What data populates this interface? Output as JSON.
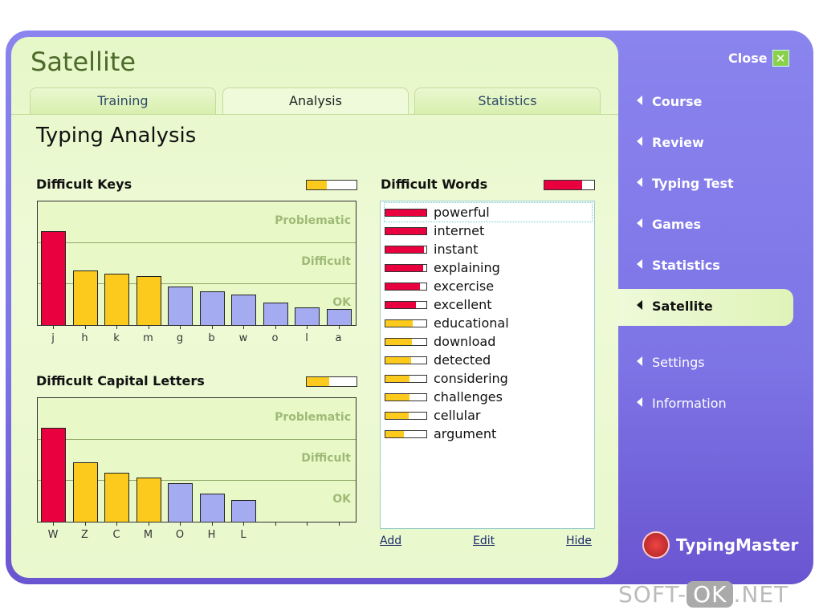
{
  "window": {
    "title": "Satellite",
    "close_label": "Close"
  },
  "tabs": [
    {
      "label": "Training"
    },
    {
      "label": "Analysis",
      "active": true
    },
    {
      "label": "Statistics"
    }
  ],
  "page_title": "Typing Analysis",
  "zones": [
    "Problematic",
    "Difficult",
    "OK"
  ],
  "colors": {
    "red": "#e8003f",
    "yellow": "#fcca1c",
    "blue": "#a4abf0"
  },
  "difficult_keys": {
    "title": "Difficult Keys",
    "indicator": 0.4,
    "indicator_color": "yellow",
    "keys": [
      {
        "k": "j",
        "v": 2.29,
        "c": "red"
      },
      {
        "k": "h",
        "v": 1.33,
        "c": "yellow"
      },
      {
        "k": "k",
        "v": 1.25,
        "c": "yellow"
      },
      {
        "k": "m",
        "v": 1.19,
        "c": "yellow"
      },
      {
        "k": "g",
        "v": 0.94,
        "c": "blue"
      },
      {
        "k": "b",
        "v": 0.83,
        "c": "blue"
      },
      {
        "k": "w",
        "v": 0.75,
        "c": "blue"
      },
      {
        "k": "o",
        "v": 0.54,
        "c": "blue"
      },
      {
        "k": "l",
        "v": 0.44,
        "c": "blue"
      },
      {
        "k": "a",
        "v": 0.4,
        "c": "blue"
      }
    ]
  },
  "difficult_capitals": {
    "title": "Difficult Capital Letters",
    "indicator": 0.45,
    "indicator_color": "yellow",
    "keys": [
      {
        "k": "W",
        "v": 2.29,
        "c": "red"
      },
      {
        "k": "Z",
        "v": 1.46,
        "c": "yellow"
      },
      {
        "k": "C",
        "v": 1.19,
        "c": "yellow"
      },
      {
        "k": "M",
        "v": 1.08,
        "c": "yellow"
      },
      {
        "k": "O",
        "v": 0.94,
        "c": "blue"
      },
      {
        "k": "H",
        "v": 0.69,
        "c": "blue"
      },
      {
        "k": "L",
        "v": 0.52,
        "c": "blue"
      },
      {
        "k": "",
        "v": 0,
        "c": "blue"
      },
      {
        "k": "",
        "v": 0,
        "c": "blue"
      },
      {
        "k": "",
        "v": 0,
        "c": "blue"
      }
    ]
  },
  "difficult_words": {
    "title": "Difficult Words",
    "indicator": 0.75,
    "indicator_color": "red",
    "words": [
      {
        "w": "powerful",
        "v": 1.0,
        "c": "red"
      },
      {
        "w": "internet",
        "v": 1.0,
        "c": "red"
      },
      {
        "w": "instant",
        "v": 0.95,
        "c": "red"
      },
      {
        "w": "explaining",
        "v": 0.92,
        "c": "red"
      },
      {
        "w": "excercise",
        "v": 0.85,
        "c": "red"
      },
      {
        "w": "excellent",
        "v": 0.75,
        "c": "red"
      },
      {
        "w": "educational",
        "v": 0.67,
        "c": "yellow"
      },
      {
        "w": "download",
        "v": 0.65,
        "c": "yellow"
      },
      {
        "w": "detected",
        "v": 0.62,
        "c": "yellow"
      },
      {
        "w": "considering",
        "v": 0.58,
        "c": "yellow"
      },
      {
        "w": "challenges",
        "v": 0.58,
        "c": "yellow"
      },
      {
        "w": "cellular",
        "v": 0.56,
        "c": "yellow"
      },
      {
        "w": "argument",
        "v": 0.45,
        "c": "yellow"
      }
    ],
    "add": "Add",
    "edit": "Edit",
    "hide": "Hide"
  },
  "nav": [
    {
      "label": "Course"
    },
    {
      "label": "Review"
    },
    {
      "label": "Typing Test"
    },
    {
      "label": "Games"
    },
    {
      "label": "Statistics"
    },
    {
      "label": "Satellite",
      "active": true
    },
    {
      "label": "Settings"
    },
    {
      "label": "Information"
    }
  ],
  "brand": "TypingMaster",
  "watermark": {
    "a": "SOFT-",
    "b": "OK",
    ".c": "",
    "c": ".NET"
  }
}
